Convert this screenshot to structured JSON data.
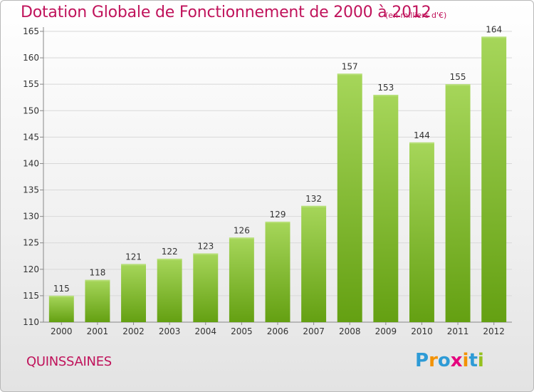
{
  "title": "Dotation Globale de Fonctionnement de 2000 à 2012",
  "subtitle": "(en milliers d'€)",
  "commune": "QUINSSAINES",
  "logo": {
    "letters": [
      "P",
      "r",
      "o",
      "x",
      "i",
      "t",
      "i"
    ],
    "colors": [
      "#2e9bd6",
      "#f39200",
      "#2e9bd6",
      "#e5007e",
      "#f39200",
      "#2e9bd6",
      "#95c11f"
    ]
  },
  "colors": {
    "title": "#c0135b",
    "bar_top": "#a6d65a",
    "bar_bottom": "#64a012",
    "grid": "#d8d8d8",
    "axis": "#888888",
    "text": "#333333"
  },
  "chart_data": {
    "type": "bar",
    "title": "Dotation Globale de Fonctionnement de 2000 à 2012",
    "subtitle": "(en milliers d'€)",
    "categories": [
      "2000",
      "2001",
      "2002",
      "2003",
      "2004",
      "2005",
      "2006",
      "2007",
      "2008",
      "2009",
      "2010",
      "2011",
      "2012"
    ],
    "values": [
      115,
      118,
      121,
      122,
      123,
      126,
      129,
      132,
      157,
      153,
      144,
      155,
      164
    ],
    "ylim": [
      110,
      165
    ],
    "yticks": [
      110,
      115,
      120,
      125,
      130,
      135,
      140,
      145,
      150,
      155,
      160,
      165
    ],
    "grid": true,
    "data_labels": true
  }
}
